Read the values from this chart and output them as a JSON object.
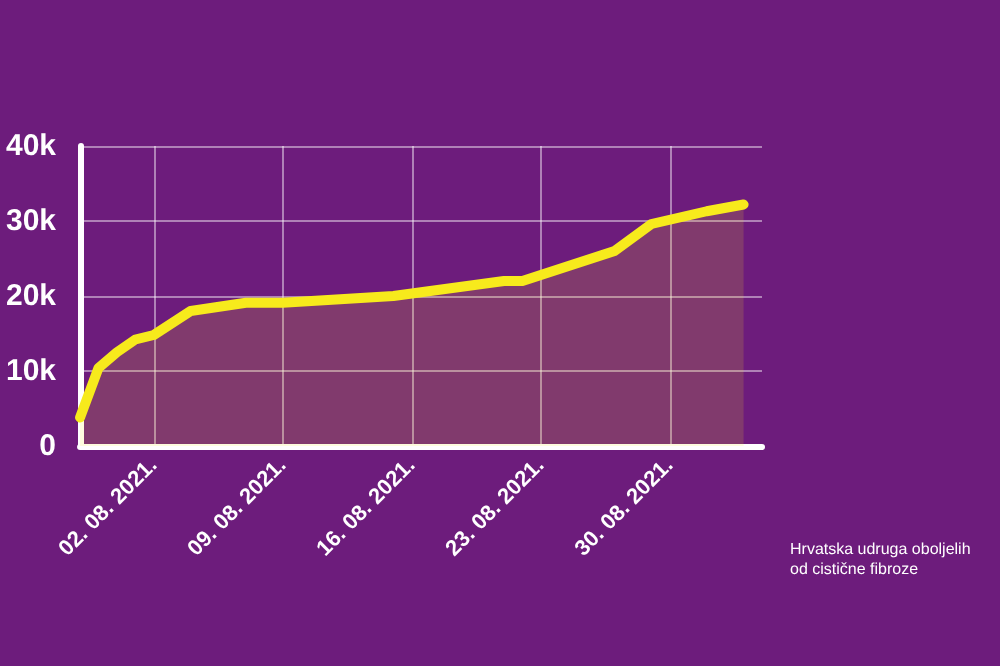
{
  "chart_data": {
    "type": "area",
    "x": [
      "2021-07-29",
      "2021-07-30",
      "2021-07-31",
      "2021-08-01",
      "2021-08-02",
      "2021-08-04",
      "2021-08-07",
      "2021-08-09",
      "2021-08-15",
      "2021-08-21",
      "2021-08-22",
      "2021-08-27",
      "2021-08-29",
      "2021-09-01",
      "2021-09-03"
    ],
    "series": [
      {
        "color": "#f7ea1c",
        "values": [
          3800,
          10400,
          12500,
          14200,
          14800,
          18000,
          19100,
          19100,
          20000,
          22000,
          22000,
          26000,
          29600,
          31300,
          32200
        ]
      }
    ],
    "xlim": [
      "2021-07-29",
      "2021-09-04"
    ],
    "xticks": [
      {
        "value": "2021-08-02",
        "label": "02. 08. 2021."
      },
      {
        "value": "2021-08-09",
        "label": "09. 08. 2021."
      },
      {
        "value": "2021-08-16",
        "label": "16. 08. 2021."
      },
      {
        "value": "2021-08-23",
        "label": "23. 08. 2021."
      },
      {
        "value": "2021-08-30",
        "label": "30. 08. 2021."
      }
    ],
    "ylim": [
      0,
      40000
    ],
    "yticks": [
      0,
      {
        "value": 10000,
        "label": "10k"
      },
      {
        "value": 20000,
        "label": "20k"
      },
      {
        "value": 30000,
        "label": "30k"
      },
      {
        "value": 40000,
        "label": "40k"
      }
    ],
    "grid": true,
    "marker": "none",
    "line_style": "solid",
    "annotations": [
      "Hrvatska udruga oboljelih od cistične fibroze"
    ]
  }
}
